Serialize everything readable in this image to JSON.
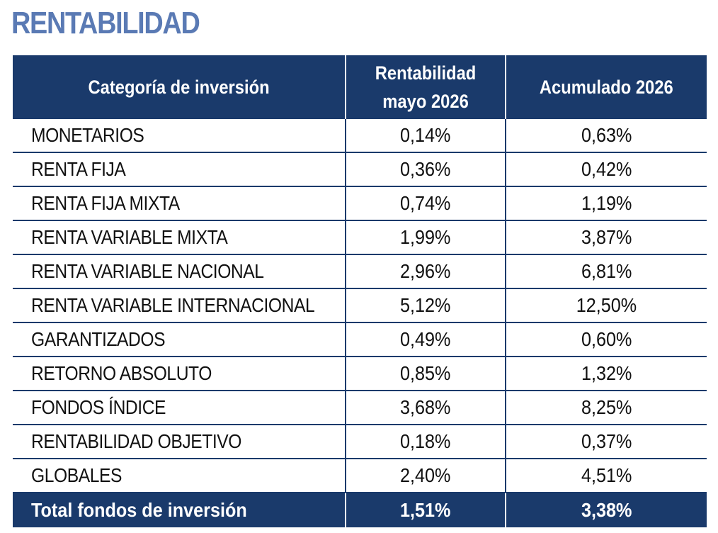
{
  "title": "RENTABILIDAD",
  "table": {
    "headers": {
      "category": "Categoría de inversión",
      "month_line1": "Rentabilidad",
      "month_line2": "mayo 2026",
      "cumulative": "Acumulado 2026"
    },
    "rows": [
      {
        "category": "MONETARIOS",
        "month": "0,14%",
        "cumulative": "0,63%"
      },
      {
        "category": "RENTA FIJA",
        "month": "0,36%",
        "cumulative": "0,42%"
      },
      {
        "category": "RENTA FIJA MIXTA",
        "month": "0,74%",
        "cumulative": "1,19%"
      },
      {
        "category": "RENTA VARIABLE MIXTA",
        "month": "1,99%",
        "cumulative": "3,87%"
      },
      {
        "category": "RENTA VARIABLE NACIONAL",
        "month": "2,96%",
        "cumulative": "6,81%"
      },
      {
        "category": "RENTA VARIABLE INTERNACIONAL",
        "month": "5,12%",
        "cumulative": "12,50%"
      },
      {
        "category": "GARANTIZADOS",
        "month": "0,49%",
        "cumulative": "0,60%"
      },
      {
        "category": "RETORNO ABSOLUTO",
        "month": "0,85%",
        "cumulative": "1,32%"
      },
      {
        "category": "FONDOS ÍNDICE",
        "month": "3,68%",
        "cumulative": "8,25%"
      },
      {
        "category": "RENTABILIDAD OBJETIVO",
        "month": "0,18%",
        "cumulative": "0,37%"
      },
      {
        "category": "GLOBALES",
        "month": "2,40%",
        "cumulative": "4,51%"
      }
    ],
    "total": {
      "category": "Total fondos de inversión",
      "month": "1,51%",
      "cumulative": "3,38%"
    }
  },
  "colors": {
    "title": "#5a7ab4",
    "header_bg": "#1a3a6b",
    "header_text": "#ffffff",
    "row_border": "#1a3a6b"
  }
}
